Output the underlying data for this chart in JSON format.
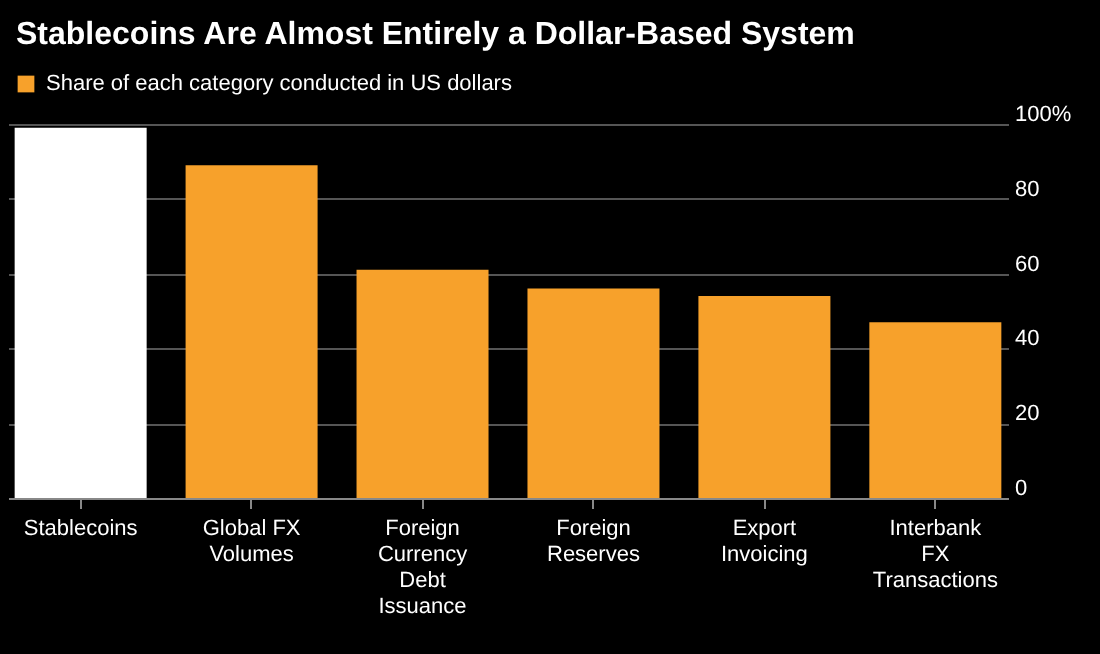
{
  "chart_data": {
    "type": "bar",
    "title": "Stablecoins Are Almost Entirely a Dollar-Based System",
    "categories": [
      "Stablecoins",
      "Global FX\nVolumes",
      "Foreign\nCurrency\nDebt\nIssuance",
      "Foreign\nReserves",
      "Export\nInvoicing",
      "Interbank\nFX\nTransactions"
    ],
    "series": [
      {
        "name": "Share of each category conducted in US dollars",
        "color": "#f7a12b",
        "colors": [
          "#ffffff",
          "#f7a12b",
          "#f7a12b",
          "#f7a12b",
          "#f7a12b",
          "#f7a12b"
        ],
        "values": [
          99,
          89,
          61,
          56,
          54,
          47
        ]
      }
    ],
    "ylim": [
      0,
      100
    ],
    "yticks": [
      0,
      20,
      40,
      60,
      80,
      {
        "value": 100,
        "label": "100%"
      }
    ],
    "grid": "y",
    "legend": "top left"
  }
}
